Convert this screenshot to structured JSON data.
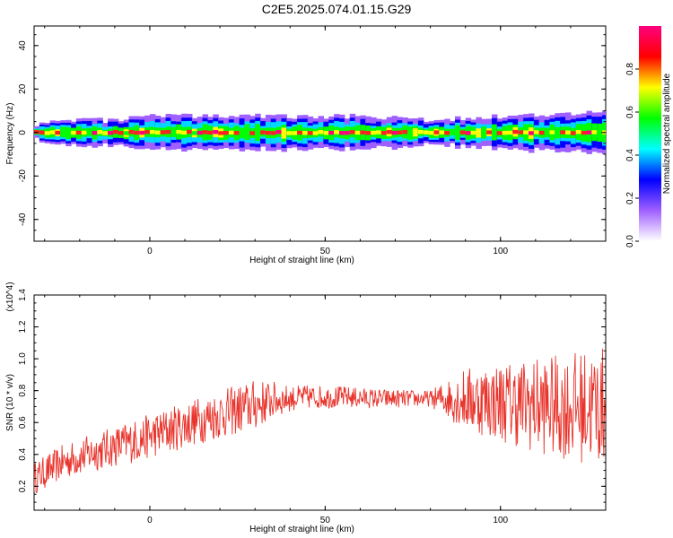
{
  "title": "C2E5.2025.074.01.15.G29",
  "chart_data": [
    {
      "type": "heatmap",
      "xlabel": "Height of straight line (km)",
      "ylabel": "Frequency (Hz)",
      "xlim": [
        -33,
        130
      ],
      "ylim": [
        -50,
        49
      ],
      "xticks": [
        0,
        50,
        100
      ],
      "yticks": [
        -40,
        -20,
        0,
        20,
        40
      ],
      "band_center_hz": 0,
      "band_halfwidth_hz": [
        [
          -33,
          2
        ],
        [
          -20,
          3
        ],
        [
          -10,
          3
        ],
        [
          0,
          4
        ],
        [
          20,
          4
        ],
        [
          40,
          4
        ],
        [
          60,
          4
        ],
        [
          80,
          3
        ],
        [
          100,
          4
        ],
        [
          130,
          5
        ]
      ],
      "colorbar": {
        "label": "Normalized spectral amplitude",
        "range": [
          0,
          1
        ],
        "ticks": [
          0.0,
          0.2,
          0.4,
          0.6,
          0.8
        ],
        "tick_labels": [
          "0.0",
          "0.2",
          "0.4",
          "0.6",
          "0.8"
        ],
        "colors": [
          "#ffffff",
          "#a060ff",
          "#0000ff",
          "#00ffff",
          "#00ff00",
          "#ffff00",
          "#ff0000",
          "#ff0080"
        ]
      },
      "grid": false
    },
    {
      "type": "line",
      "xlabel": "Height of straight line (km)",
      "ylabel": "SNR (10 * v/v)",
      "y_multiplier": "(x10^4)",
      "xlim": [
        -33,
        130
      ],
      "ylim": [
        0.05,
        1.4
      ],
      "xticks": [
        0,
        50,
        100
      ],
      "yticks": [
        0.2,
        0.4,
        0.6,
        0.8,
        1.0,
        1.2,
        1.4
      ],
      "ytick_labels": [
        "0.2",
        "0.4",
        "0.6",
        "0.8",
        "1.0",
        "1.2",
        "1.4"
      ],
      "series": [
        {
          "color": "#e8342c",
          "trend": {
            "x": [
              -33,
              -25,
              -15,
              -5,
              5,
              15,
              25,
              35,
              45,
              55,
              65,
              75,
              85,
              95,
              105,
              115,
              125,
              130
            ],
            "y": [
              0.25,
              0.35,
              0.42,
              0.48,
              0.55,
              0.62,
              0.68,
              0.74,
              0.76,
              0.76,
              0.75,
              0.75,
              0.75,
              0.74,
              0.72,
              0.7,
              0.7,
              0.7
            ]
          },
          "noise_amplitude": {
            "x": [
              -33,
              0,
              30,
              40,
              80,
              90,
              110,
              130
            ],
            "y": [
              0.1,
              0.14,
              0.16,
              0.08,
              0.05,
              0.2,
              0.3,
              0.38
            ]
          }
        }
      ],
      "grid": false
    }
  ],
  "tick_label_text": {
    "x": [
      "0",
      "50",
      "100"
    ],
    "top_y": [
      "-40",
      "-20",
      "0",
      "20",
      "40"
    ],
    "bottom_y": [
      "0.2",
      "0.4",
      "0.6",
      "0.8",
      "1.0",
      "1.2",
      "1.4"
    ],
    "colorbar": [
      "0.0",
      "0.2",
      "0.4",
      "0.6",
      "0.8"
    ]
  }
}
